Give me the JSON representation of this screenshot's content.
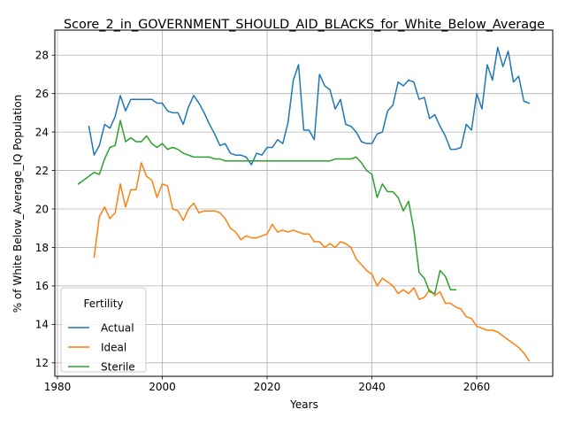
{
  "chart_data": {
    "type": "line",
    "title": "Score_2_in_GOVERNMENT_SHOULD_AID_BLACKS_for_White_Below_Average",
    "xlabel": "Years",
    "ylabel": "% of White Below_Average_IQ Population",
    "xlim": [
      1979.5,
      2074.5
    ],
    "ylim": [
      11.3,
      29.3
    ],
    "xticks": [
      1980,
      2000,
      2020,
      2040,
      2060
    ],
    "yticks": [
      12,
      14,
      16,
      18,
      20,
      22,
      24,
      26,
      28
    ],
    "grid": true,
    "legend": {
      "title": "Fertility",
      "placement": "lower-left"
    },
    "series": [
      {
        "name": "Actual",
        "color": "#1f77b4",
        "x": [
          1986,
          1987,
          1988,
          1989,
          1990,
          1991,
          1992,
          1993,
          1994,
          1995,
          1996,
          1997,
          1998,
          1999,
          2000,
          2001,
          2002,
          2003,
          2004,
          2005,
          2006,
          2007,
          2008,
          2009,
          2010,
          2011,
          2012,
          2013,
          2014,
          2015,
          2016,
          2017,
          2018,
          2019,
          2020,
          2021,
          2022,
          2023,
          2024,
          2025,
          2026,
          2027,
          2028,
          2029,
          2030,
          2031,
          2032,
          2033,
          2034,
          2035,
          2036,
          2037,
          2038,
          2039,
          2040,
          2041,
          2042,
          2043,
          2044,
          2045,
          2046,
          2047,
          2048,
          2049,
          2050,
          2051,
          2052,
          2053,
          2054,
          2055,
          2056,
          2057,
          2058,
          2059,
          2060,
          2061,
          2062,
          2063,
          2064,
          2065,
          2066,
          2067,
          2068,
          2069,
          2070
        ],
        "values": [
          24.3,
          22.8,
          23.3,
          24.4,
          24.2,
          24.8,
          25.9,
          25.1,
          25.7,
          25.7,
          25.7,
          25.7,
          25.7,
          25.5,
          25.5,
          25.1,
          25.0,
          25.0,
          24.4,
          25.3,
          25.9,
          25.5,
          25.0,
          24.4,
          23.9,
          23.3,
          23.4,
          22.9,
          22.8,
          22.8,
          22.7,
          22.3,
          22.9,
          22.8,
          23.2,
          23.2,
          23.6,
          23.4,
          24.5,
          26.7,
          27.5,
          24.1,
          24.1,
          23.6,
          27.0,
          26.4,
          26.2,
          25.2,
          25.7,
          24.4,
          24.3,
          24.0,
          23.5,
          23.4,
          23.4,
          23.9,
          24.0,
          25.1,
          25.4,
          26.6,
          26.4,
          26.7,
          26.6,
          25.7,
          25.8,
          24.7,
          24.9,
          24.3,
          23.8,
          23.1,
          23.1,
          23.2,
          24.4,
          24.1,
          26.0,
          25.2,
          27.5,
          26.7,
          28.4,
          27.4,
          28.2,
          26.6,
          26.9,
          25.6,
          25.5
        ]
      },
      {
        "name": "Ideal",
        "color": "#ff7f0e",
        "x": [
          1987,
          1988,
          1989,
          1990,
          1991,
          1992,
          1993,
          1994,
          1995,
          1996,
          1997,
          1998,
          1999,
          2000,
          2001,
          2002,
          2003,
          2004,
          2005,
          2006,
          2007,
          2008,
          2009,
          2010,
          2011,
          2012,
          2013,
          2014,
          2015,
          2016,
          2017,
          2018,
          2019,
          2020,
          2021,
          2022,
          2023,
          2024,
          2025,
          2026,
          2027,
          2028,
          2029,
          2030,
          2031,
          2032,
          2033,
          2034,
          2035,
          2036,
          2037,
          2038,
          2039,
          2040,
          2041,
          2042,
          2043,
          2044,
          2045,
          2046,
          2047,
          2048,
          2049,
          2050,
          2051,
          2052,
          2053,
          2054,
          2055,
          2056,
          2057,
          2058,
          2059,
          2060,
          2061,
          2062,
          2063,
          2064,
          2065,
          2066,
          2067,
          2068,
          2069,
          2070
        ],
        "values": [
          17.5,
          19.6,
          20.1,
          19.5,
          19.8,
          21.3,
          20.1,
          21.0,
          21.0,
          22.4,
          21.7,
          21.5,
          20.6,
          21.3,
          21.2,
          20.0,
          19.9,
          19.4,
          20.0,
          20.3,
          19.8,
          19.9,
          19.9,
          19.9,
          19.8,
          19.5,
          19.0,
          18.8,
          18.4,
          18.6,
          18.5,
          18.5,
          18.6,
          18.7,
          19.2,
          18.8,
          18.9,
          18.8,
          18.9,
          18.8,
          18.7,
          18.7,
          18.3,
          18.3,
          18.0,
          18.2,
          18.0,
          18.3,
          18.2,
          18.0,
          17.4,
          17.1,
          16.8,
          16.6,
          16.0,
          16.4,
          16.2,
          16.0,
          15.6,
          15.8,
          15.6,
          15.9,
          15.3,
          15.4,
          15.8,
          15.5,
          15.7,
          15.1,
          15.1,
          14.9,
          14.8,
          14.4,
          14.3,
          13.9,
          13.8,
          13.7,
          13.7,
          13.6,
          13.4,
          13.2,
          13.0,
          12.8,
          12.5,
          12.1
        ]
      },
      {
        "name": "Sterile",
        "color": "#2ca02c",
        "x": [
          1984,
          1985,
          1986,
          1987,
          1988,
          1989,
          1990,
          1991,
          1992,
          1993,
          1994,
          1995,
          1996,
          1997,
          1998,
          1999,
          2000,
          2001,
          2002,
          2003,
          2004,
          2005,
          2006,
          2007,
          2008,
          2009,
          2010,
          2011,
          2012,
          2013,
          2014,
          2015,
          2016,
          2017,
          2018,
          2019,
          2020,
          2021,
          2022,
          2023,
          2024,
          2025,
          2026,
          2027,
          2028,
          2029,
          2030,
          2031,
          2032,
          2033,
          2034,
          2035,
          2036,
          2037,
          2038,
          2039,
          2040,
          2041,
          2042,
          2043,
          2044,
          2045,
          2046,
          2047,
          2048,
          2049,
          2050,
          2051,
          2052,
          2053,
          2054,
          2055,
          2056
        ],
        "values": [
          21.3,
          21.5,
          21.7,
          21.9,
          21.8,
          22.6,
          23.2,
          23.3,
          24.6,
          23.5,
          23.7,
          23.5,
          23.5,
          23.8,
          23.4,
          23.2,
          23.4,
          23.1,
          23.2,
          23.1,
          22.9,
          22.8,
          22.7,
          22.7,
          22.7,
          22.7,
          22.6,
          22.6,
          22.5,
          22.5,
          22.5,
          22.5,
          22.5,
          22.5,
          22.5,
          22.5,
          22.5,
          22.5,
          22.5,
          22.5,
          22.5,
          22.5,
          22.5,
          22.5,
          22.5,
          22.5,
          22.5,
          22.5,
          22.5,
          22.6,
          22.6,
          22.6,
          22.6,
          22.7,
          22.4,
          22.0,
          21.8,
          20.6,
          21.3,
          20.9,
          20.9,
          20.6,
          19.9,
          20.4,
          18.9,
          16.7,
          16.4,
          15.7,
          15.6,
          16.8,
          16.5,
          15.8,
          15.8
        ]
      }
    ]
  }
}
